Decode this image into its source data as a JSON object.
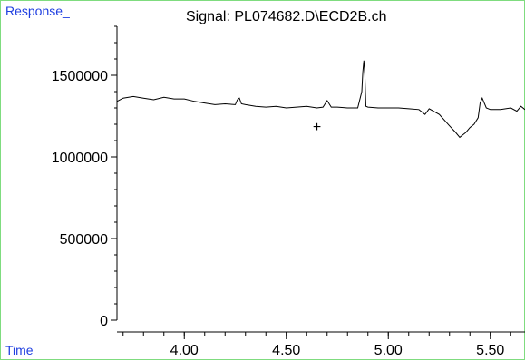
{
  "labels": {
    "y_axis": "Response_",
    "x_axis": "Time"
  },
  "marker_symbol": "+",
  "colors": {
    "axis_label": "#1f3fe0",
    "frame": "#7fdc7f",
    "trace": "#000000"
  },
  "chart_data": {
    "type": "line",
    "title": "Signal: PL074682.D\\ECD2B.ch",
    "xlabel": "Time",
    "ylabel": "Response_",
    "xlim": [
      3.67,
      5.67
    ],
    "ylim": [
      0,
      1800000
    ],
    "grid": false,
    "xticks": {
      "major": [
        4.0,
        4.5,
        5.0,
        5.5
      ],
      "labels": [
        "4.00",
        "4.50",
        "5.00",
        "5.50"
      ],
      "minor_step": 0.1
    },
    "yticks": {
      "major": [
        0,
        500000,
        1000000,
        1500000
      ],
      "labels": [
        "0",
        "500000",
        "1000000",
        "1500000"
      ],
      "minor_step": 100000
    },
    "marker": {
      "x": 4.65,
      "y": 1190000,
      "symbol": "+"
    },
    "series": [
      {
        "x": [
          3.67,
          3.7,
          3.75,
          3.8,
          3.85,
          3.9,
          3.95,
          4.0,
          4.05,
          4.1,
          4.15,
          4.2,
          4.25,
          4.26,
          4.27,
          4.28,
          4.3,
          4.35,
          4.4,
          4.45,
          4.5,
          4.55,
          4.6,
          4.65,
          4.68,
          4.7,
          4.72,
          4.75,
          4.8,
          4.85,
          4.87,
          4.875,
          4.88,
          4.885,
          4.89,
          4.9,
          4.95,
          5.0,
          5.05,
          5.1,
          5.15,
          5.18,
          5.2,
          5.25,
          5.3,
          5.33,
          5.35,
          5.38,
          5.4,
          5.42,
          5.44,
          5.45,
          5.46,
          5.48,
          5.5,
          5.55,
          5.6,
          5.63,
          5.65,
          5.67
        ],
        "y": [
          1340000,
          1360000,
          1370000,
          1360000,
          1350000,
          1365000,
          1355000,
          1355000,
          1340000,
          1330000,
          1320000,
          1325000,
          1320000,
          1350000,
          1360000,
          1325000,
          1320000,
          1310000,
          1305000,
          1310000,
          1300000,
          1305000,
          1310000,
          1300000,
          1305000,
          1345000,
          1305000,
          1305000,
          1300000,
          1300000,
          1400000,
          1520000,
          1590000,
          1500000,
          1310000,
          1305000,
          1300000,
          1300000,
          1300000,
          1295000,
          1290000,
          1260000,
          1295000,
          1260000,
          1190000,
          1150000,
          1120000,
          1150000,
          1180000,
          1200000,
          1240000,
          1330000,
          1360000,
          1300000,
          1290000,
          1290000,
          1300000,
          1280000,
          1310000,
          1290000
        ]
      }
    ]
  }
}
